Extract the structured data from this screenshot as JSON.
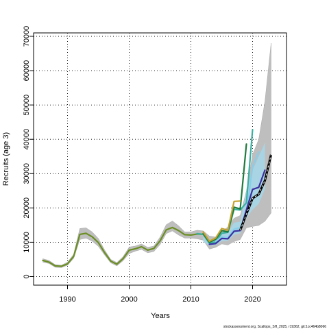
{
  "chart_data": {
    "type": "line",
    "title": "",
    "xlabel": "Years",
    "ylabel": "Recruits (age 3)",
    "xlim": [
      1984.5,
      2025.5
    ],
    "ylim": [
      -2500,
      71000
    ],
    "x_ticks": [
      1990,
      2000,
      2010,
      2020
    ],
    "x_tick_labels": [
      "1990",
      "2000",
      "2010",
      "2020"
    ],
    "y_ticks": [
      0,
      10000,
      20000,
      30000,
      40000,
      50000,
      60000,
      70000
    ],
    "y_tick_labels": [
      "0",
      "10000",
      "20000",
      "30000",
      "40000",
      "50000",
      "60000",
      "70000"
    ],
    "grid": true,
    "grid_style": "dotted",
    "footer_text": "stockassessment.org, Scallops_SH_2025, r19362, git:1cc464b8066",
    "colors": {
      "band": "#bebebe",
      "band_edge": "#a8a8a8",
      "light_band": "#a6d8ea",
      "final": "#000000",
      "final_dash": "#ffffff"
    },
    "confidence_band": {
      "x": [
        1986,
        1987,
        1988,
        1989,
        1990,
        1991,
        1992,
        1993,
        1994,
        1995,
        1996,
        1997,
        1998,
        1999,
        2000,
        2001,
        2002,
        2003,
        2004,
        2005,
        2006,
        2007,
        2008,
        2009,
        2010,
        2011,
        2012,
        2013,
        2014,
        2015,
        2016,
        2017,
        2018,
        2019,
        2020,
        2021,
        2022,
        2023
      ],
      "lower": [
        4200,
        3800,
        2700,
        2600,
        3300,
        5300,
        10800,
        11200,
        10300,
        8800,
        6300,
        4000,
        3100,
        4600,
        6700,
        7400,
        7900,
        6900,
        7300,
        9300,
        12500,
        13300,
        12100,
        11200,
        11200,
        11000,
        10600,
        8000,
        8500,
        9500,
        9200,
        10200,
        10800,
        14200,
        14600,
        14900,
        16100,
        18500
      ],
      "upper": [
        5200,
        4700,
        3500,
        3300,
        4200,
        6500,
        14000,
        14200,
        13000,
        11100,
        7800,
        5000,
        4100,
        5800,
        8600,
        8900,
        9500,
        8500,
        8900,
        11500,
        15100,
        16200,
        14800,
        13000,
        13000,
        13500,
        13300,
        11800,
        11500,
        13200,
        14400,
        17000,
        17800,
        25000,
        35500,
        40000,
        51000,
        68000
      ]
    },
    "light_band": {
      "x": [
        2012,
        2013,
        2014,
        2015,
        2016,
        2017,
        2018,
        2019,
        2020,
        2021,
        2022
      ],
      "lower": [
        10200,
        9000,
        9200,
        10300,
        10400,
        12200,
        12600,
        17000,
        19500,
        21200,
        25500
      ],
      "upper": [
        12200,
        10700,
        10900,
        12500,
        13000,
        15700,
        16000,
        25000,
        31000,
        35000,
        39000
      ]
    },
    "series": [
      {
        "color": "#6b8e23",
        "x": [
          1986,
          1987,
          1988,
          1989,
          1990,
          1991,
          1992,
          1993,
          1994,
          1995,
          1996,
          1997,
          1998,
          1999,
          2000,
          2001,
          2002,
          2003,
          2004,
          2005,
          2006,
          2007,
          2008,
          2009,
          2010,
          2011,
          2012
        ],
        "values": [
          4700,
          4200,
          3100,
          3000,
          3700,
          5900,
          12300,
          12600,
          11600,
          9900,
          7000,
          4500,
          3600,
          5200,
          7700,
          8100,
          8700,
          7700,
          8200,
          10400,
          13600,
          14300,
          13400,
          12200,
          12100,
          12400,
          12300
        ]
      },
      {
        "color": "#3ab0a0",
        "x": [
          2011,
          2012,
          2013,
          2014,
          2015,
          2016,
          2017,
          2018,
          2019,
          2020
        ],
        "values": [
          12500,
          12300,
          9700,
          10100,
          12600,
          12900,
          19600,
          19400,
          21500,
          42800
        ]
      },
      {
        "color": "#1e7a3c",
        "x": [
          2012,
          2013,
          2014,
          2015,
          2016,
          2017,
          2018,
          2019
        ],
        "values": [
          12500,
          10000,
          10800,
          13400,
          13000,
          20200,
          19700,
          38600
        ]
      },
      {
        "color": "#c4a22e",
        "x": [
          2012,
          2013,
          2014,
          2015,
          2016,
          2017,
          2018
        ],
        "values": [
          13000,
          10300,
          11200,
          14000,
          13500,
          21900,
          22000
        ]
      },
      {
        "color": "#87ceeb",
        "x": [
          2014,
          2015,
          2016,
          2017,
          2018,
          2019,
          2020,
          2021
        ],
        "values": [
          10300,
          11500,
          11300,
          13800,
          14300,
          18300,
          32000,
          36300
        ]
      },
      {
        "color": "#3a2fa0",
        "x": [
          2013,
          2014,
          2015,
          2016,
          2017,
          2018,
          2019,
          2020,
          2021,
          2022
        ],
        "values": [
          9400,
          9600,
          11100,
          11000,
          13200,
          13400,
          19400,
          25400,
          26000,
          31000
        ]
      },
      {
        "color": "#000000",
        "dashed": true,
        "x": [
          2018,
          2019,
          2020,
          2021,
          2022,
          2023
        ],
        "values": [
          13500,
          18200,
          22800,
          24000,
          28000,
          35500
        ]
      }
    ]
  }
}
